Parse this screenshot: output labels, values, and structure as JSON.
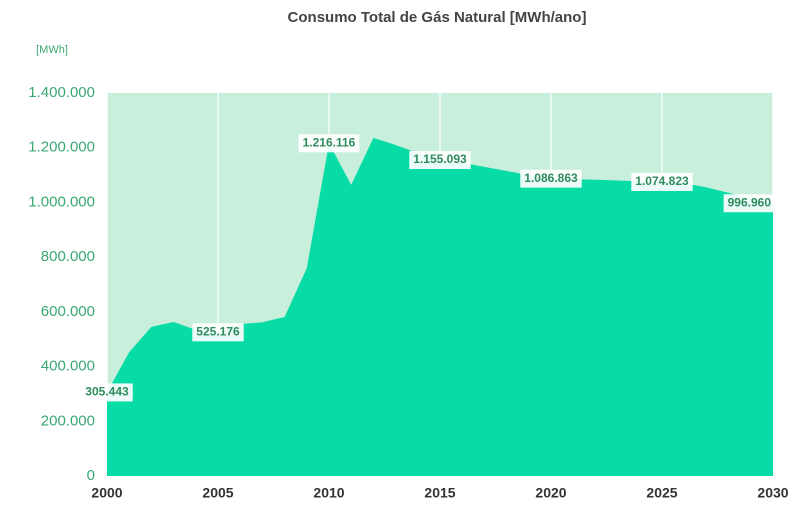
{
  "chart_data": {
    "type": "area",
    "title": "Consumo Total de Gás Natural [MWh/ano]",
    "y_label": "[MWh]",
    "x": [
      2000,
      2001,
      2002,
      2003,
      2004,
      2005,
      2006,
      2007,
      2008,
      2009,
      2010,
      2011,
      2012,
      2013,
      2014,
      2015,
      2016,
      2017,
      2018,
      2019,
      2020,
      2021,
      2022,
      2023,
      2024,
      2025,
      2026,
      2027,
      2028,
      2029,
      2030
    ],
    "series": [
      {
        "name": "Consumo",
        "color": "#07dba6",
        "values": [
          305443,
          453000,
          545000,
          563000,
          534000,
          525176,
          555000,
          562000,
          581000,
          760000,
          1216116,
          1064000,
          1236000,
          1210000,
          1180000,
          1155093,
          1145000,
          1130000,
          1115000,
          1100000,
          1086863,
          1085000,
          1083000,
          1080000,
          1077000,
          1074823,
          1070000,
          1055000,
          1035000,
          1015000,
          996960
        ],
        "value_labels": [
          "305.443",
          null,
          null,
          null,
          null,
          "525.176",
          null,
          null,
          null,
          null,
          "1.216.116",
          null,
          null,
          null,
          null,
          "1.155.093",
          null,
          null,
          null,
          null,
          "1.086.863",
          null,
          null,
          null,
          null,
          "1.074.823",
          null,
          null,
          null,
          null,
          "996.960"
        ]
      }
    ],
    "xlim": [
      2000,
      2030
    ],
    "xticks": [
      2000,
      2005,
      2010,
      2015,
      2020,
      2025,
      2030
    ],
    "ylim": [
      0,
      1400000
    ],
    "yticks": [
      0,
      {
        "value": 200000,
        "label": "200.000"
      },
      {
        "value": 400000,
        "label": "400.000"
      },
      {
        "value": 600000,
        "label": "600.000"
      },
      {
        "value": 800000,
        "label": "800.000"
      },
      {
        "value": 1000000,
        "label": "1.000.000"
      },
      {
        "value": 1200000,
        "label": "1.200.000"
      },
      {
        "value": 1400000,
        "label": "1.400.000"
      }
    ],
    "plot_background": "#c8eedc",
    "grid": true
  }
}
